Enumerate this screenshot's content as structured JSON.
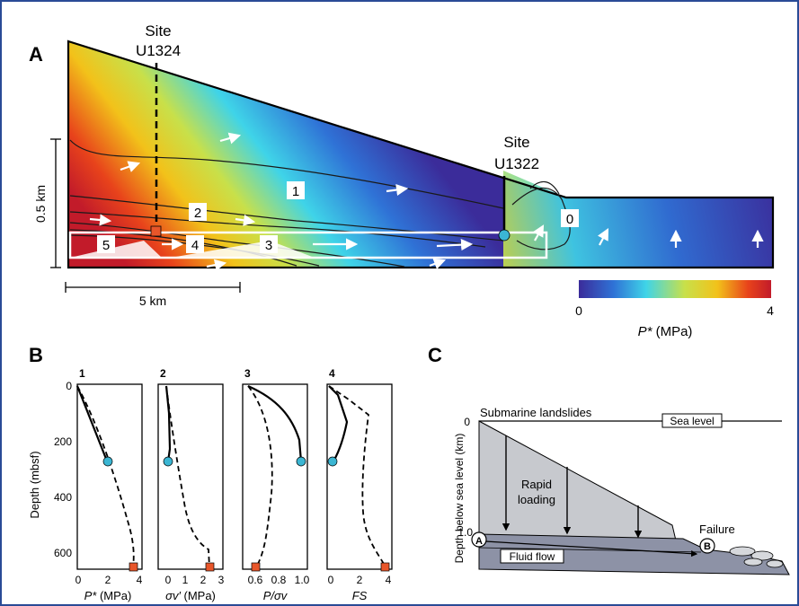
{
  "panelA": {
    "letter": "A",
    "site_u1324": [
      "Site",
      "U1324"
    ],
    "site_u1322": [
      "Site",
      "U1322"
    ],
    "depth_scale": "0.5 km",
    "horiz_scale": "5 km",
    "zone_labels": [
      "0",
      "1",
      "2",
      "3",
      "4",
      "5"
    ],
    "colorbar": {
      "min": "0",
      "max": "4",
      "label_var": "P*",
      "label_unit": " (MPa)",
      "colors": [
        "#3b2c9a",
        "#2f72d6",
        "#3fd4e8",
        "#c8e04a",
        "#f2c21a",
        "#e8431b",
        "#c21b2a"
      ]
    }
  },
  "panelB": {
    "letter": "B",
    "ylabel": "Depth (mbsf)",
    "yticks": [
      "0",
      "200",
      "400",
      "600"
    ],
    "subplots": [
      {
        "num": "1",
        "xlabel_var": "P*",
        "xlabel_unit": " (MPa)",
        "xticks": [
          "0",
          "2",
          "4"
        ]
      },
      {
        "num": "2",
        "xlabel_var": "σv′",
        "xlabel_unit": " (MPa)",
        "xticks": [
          "0",
          "1",
          "2",
          "3"
        ]
      },
      {
        "num": "3",
        "xlabel_var": "P/σv",
        "xlabel_unit": "",
        "xticks": [
          "0.6",
          "0.8",
          "1.0"
        ]
      },
      {
        "num": "4",
        "xlabel_var": "FS",
        "xlabel_unit": "",
        "xticks": [
          "0",
          "2",
          "4"
        ]
      }
    ],
    "colors": {
      "circle": "#3bb6d3",
      "square": "#e8562a"
    }
  },
  "panelC": {
    "letter": "C",
    "title": "Submarine landslides",
    "sea_level": "Sea level",
    "ylabel": "Depth below sea level (km)",
    "yticks": [
      "0",
      "1.0"
    ],
    "rapid_loading": [
      "Rapid",
      "loading"
    ],
    "failure": "Failure",
    "fluid_flow": "Fluid flow",
    "point_a": "A",
    "point_b": "B"
  }
}
